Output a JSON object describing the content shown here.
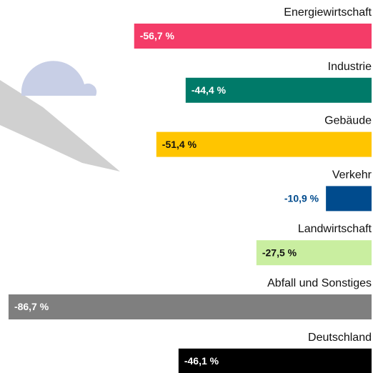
{
  "chart_data": {
    "type": "bar",
    "orientation": "horizontal",
    "categories": [
      "Energiewirtschaft",
      "Industrie",
      "Gebäude",
      "Verkehr",
      "Landwirtschaft",
      "Abfall und Sonstiges",
      "Deutschland"
    ],
    "values": [
      -56.7,
      -44.4,
      -51.4,
      -10.9,
      -27.5,
      -86.7,
      -46.1
    ],
    "value_labels": [
      "-56,7 %",
      "-44,4 %",
      "-51,4 %",
      "-10,9 %",
      "-27,5 %",
      "-86,7 %",
      "-46,1 %"
    ],
    "colors": [
      "#f43c68",
      "#007a69",
      "#ffc500",
      "#004b8d",
      "#c9eea0",
      "#7f7f7f",
      "#000000"
    ]
  }
}
